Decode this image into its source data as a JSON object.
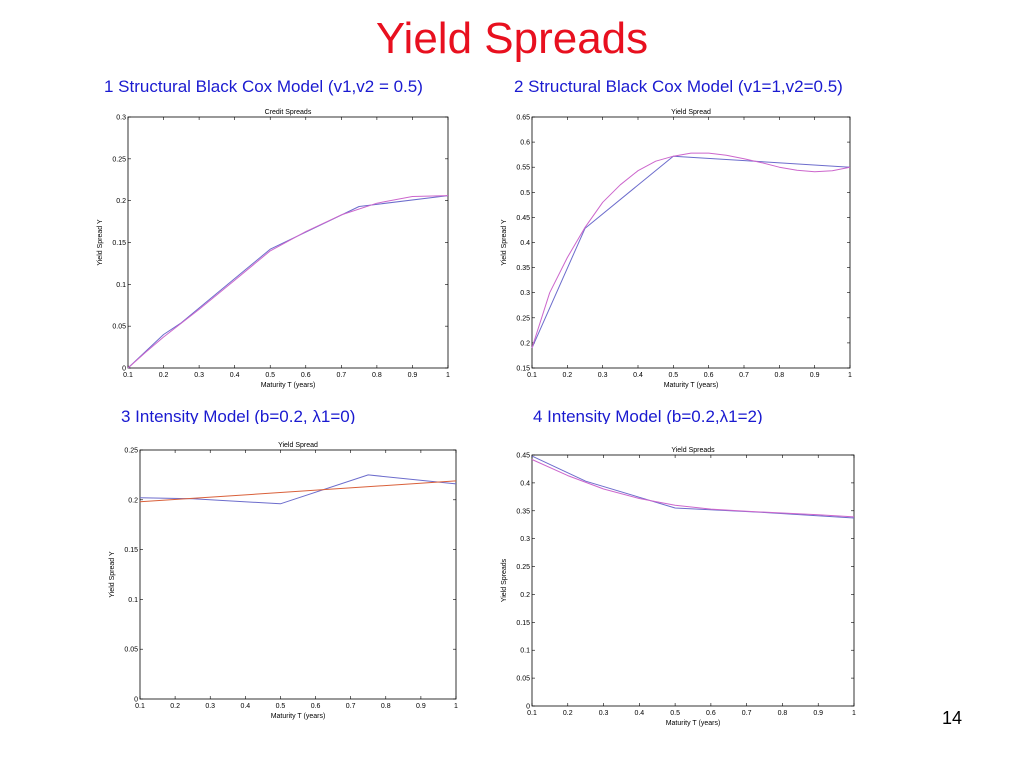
{
  "slide": {
    "title": "Yield Spreads",
    "page_number": "14"
  },
  "colors": {
    "title": "#e8101f",
    "caption": "#1a1ad0",
    "series_blue": "#6c6ccc",
    "series_magenta": "#cc66cc",
    "series_red": "#d9603a"
  },
  "chart_data": [
    {
      "type": "line",
      "caption": "1 Structural Black Cox Model (v1,v2 = 0.5)",
      "title": "Credit Spreads",
      "xlabel": "Maturity T (years)",
      "ylabel": "Yield Spread Y",
      "xlim": [
        0.1,
        1
      ],
      "ylim": [
        0,
        0.3
      ],
      "xticks": [
        "0.1",
        "0.2",
        "0.3",
        "0.4",
        "0.5",
        "0.6",
        "0.7",
        "0.8",
        "0.9",
        "1"
      ],
      "yticks": [
        "0",
        "0.05",
        "0.1",
        "0.15",
        "0.2",
        "0.25",
        "0.3"
      ],
      "grid": false,
      "series": [
        {
          "color": "#6c6ccc",
          "x": [
            0.1,
            0.2,
            0.25,
            0.5,
            0.75,
            1.0
          ],
          "y": [
            0.0,
            0.04,
            0.054,
            0.142,
            0.193,
            0.206
          ]
        },
        {
          "color": "#cc66cc",
          "x": [
            0.1,
            0.15,
            0.2,
            0.3,
            0.4,
            0.5,
            0.6,
            0.7,
            0.8,
            0.9,
            1.0
          ],
          "y": [
            0.0,
            0.019,
            0.037,
            0.07,
            0.105,
            0.14,
            0.163,
            0.183,
            0.197,
            0.205,
            0.206
          ]
        }
      ]
    },
    {
      "type": "line",
      "caption": "2 Structural Black Cox Model (v1=1,v2=0.5)",
      "title": "Yield Spread",
      "xlabel": "Maturity T (years)",
      "ylabel": "Yield Spread Y",
      "xlim": [
        0.1,
        1
      ],
      "ylim": [
        0.15,
        0.65
      ],
      "xticks": [
        "0.1",
        "0.2",
        "0.3",
        "0.4",
        "0.5",
        "0.6",
        "0.7",
        "0.8",
        "0.9",
        "1"
      ],
      "yticks": [
        "0.15",
        "0.2",
        "0.25",
        "0.3",
        "0.35",
        "0.4",
        "0.45",
        "0.5",
        "0.55",
        "0.6",
        "0.65"
      ],
      "grid": false,
      "series": [
        {
          "color": "#6c6ccc",
          "x": [
            0.1,
            0.25,
            0.5,
            1.0
          ],
          "y": [
            0.19,
            0.428,
            0.572,
            0.55
          ]
        },
        {
          "color": "#cc66cc",
          "x": [
            0.1,
            0.15,
            0.2,
            0.25,
            0.3,
            0.35,
            0.4,
            0.45,
            0.5,
            0.55,
            0.6,
            0.65,
            0.7,
            0.75,
            0.8,
            0.85,
            0.9,
            0.95,
            1.0
          ],
          "y": [
            0.19,
            0.3,
            0.37,
            0.43,
            0.48,
            0.515,
            0.543,
            0.562,
            0.572,
            0.578,
            0.578,
            0.574,
            0.567,
            0.559,
            0.55,
            0.544,
            0.541,
            0.543,
            0.55
          ]
        }
      ]
    },
    {
      "type": "line",
      "caption": "3 Intensity Model (b=0.2, λ1=0)",
      "title": "Yield Spread",
      "xlabel": "Maturity T (years)",
      "ylabel": "Yield Spread Y",
      "xlim": [
        0.1,
        1
      ],
      "ylim": [
        0,
        0.25
      ],
      "xticks": [
        "0.1",
        "0.2",
        "0.3",
        "0.4",
        "0.5",
        "0.6",
        "0.7",
        "0.8",
        "0.9",
        "1"
      ],
      "yticks": [
        "0",
        "0.05",
        "0.1",
        "0.15",
        "0.2",
        "0.25"
      ],
      "grid": false,
      "series": [
        {
          "color": "#6c6ccc",
          "x": [
            0.1,
            0.25,
            0.5,
            0.75,
            1.0
          ],
          "y": [
            0.202,
            0.201,
            0.196,
            0.225,
            0.216
          ]
        },
        {
          "color": "#d9603a",
          "x": [
            0.1,
            1.0
          ],
          "y": [
            0.198,
            0.219
          ]
        }
      ]
    },
    {
      "type": "line",
      "caption": "4 Intensity Model (b=0.2,λ1=2)",
      "title": "Yield Spreads",
      "xlabel": "Maturity T (years)",
      "ylabel": "Yield Spreads",
      "xlim": [
        0.1,
        1
      ],
      "ylim": [
        0,
        0.45
      ],
      "xticks": [
        "0.1",
        "0.2",
        "0.3",
        "0.4",
        "0.5",
        "0.6",
        "0.7",
        "0.8",
        "0.9",
        "1"
      ],
      "yticks": [
        "0",
        "0.05",
        "0.1",
        "0.15",
        "0.2",
        "0.25",
        "0.3",
        "0.35",
        "0.4",
        "0.45"
      ],
      "grid": false,
      "series": [
        {
          "color": "#6c6ccc",
          "x": [
            0.1,
            0.25,
            0.5,
            0.75,
            1.0
          ],
          "y": [
            0.448,
            0.403,
            0.355,
            0.347,
            0.337
          ]
        },
        {
          "color": "#cc66cc",
          "x": [
            0.1,
            0.2,
            0.3,
            0.4,
            0.5,
            0.6,
            0.7,
            0.8,
            0.9,
            1.0
          ],
          "y": [
            0.442,
            0.413,
            0.389,
            0.372,
            0.36,
            0.353,
            0.349,
            0.346,
            0.343,
            0.339
          ]
        }
      ]
    }
  ]
}
